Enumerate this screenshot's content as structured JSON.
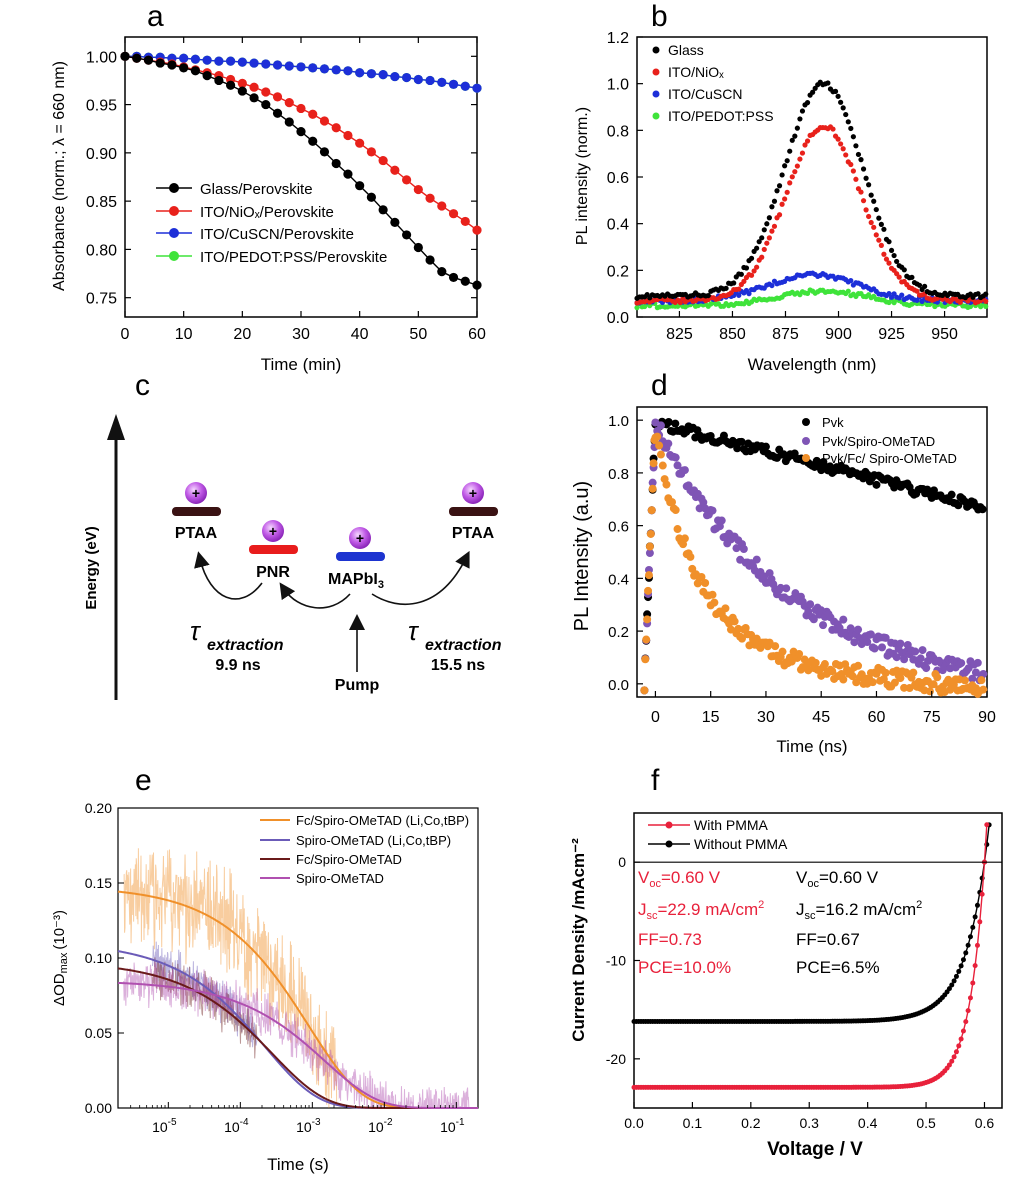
{
  "panels": {
    "a": {
      "letter": "a",
      "chart_data": {
        "type": "line",
        "xlabel": "Time (min)",
        "ylabel": "Absorbance (norm.; λ = 660 nm)",
        "xlim": [
          0,
          60
        ],
        "ylim": [
          0.73,
          1.02
        ],
        "xticks": [
          0,
          10,
          20,
          30,
          40,
          50,
          60
        ],
        "yticks": [
          "0.75",
          "0.80",
          "0.85",
          "0.90",
          "0.95",
          "1.00"
        ],
        "legend_position": "lower-left",
        "series": [
          {
            "name": "Glass/Perovskite",
            "color": "#000000",
            "x": [
              0,
              2,
              4,
              6,
              8,
              10,
              12,
              14,
              16,
              18,
              20,
              22,
              24,
              26,
              28,
              30,
              32,
              34,
              36,
              38,
              40,
              42,
              44,
              46,
              48,
              50,
              52,
              54,
              56,
              58,
              60
            ],
            "y": [
              1.0,
              0.998,
              0.996,
              0.993,
              0.991,
              0.988,
              0.985,
              0.98,
              0.975,
              0.97,
              0.964,
              0.957,
              0.95,
              0.941,
              0.932,
              0.922,
              0.912,
              0.901,
              0.889,
              0.878,
              0.866,
              0.854,
              0.841,
              0.828,
              0.815,
              0.802,
              0.789,
              0.777,
              0.771,
              0.767,
              0.763
            ]
          },
          {
            "name": "ITO/NiOₓ/Perovskite",
            "color": "#e8211b",
            "x": [
              0,
              2,
              4,
              6,
              8,
              10,
              12,
              14,
              16,
              18,
              20,
              22,
              24,
              26,
              28,
              30,
              32,
              34,
              36,
              38,
              40,
              42,
              44,
              46,
              48,
              50,
              52,
              54,
              56,
              58,
              60
            ],
            "y": [
              1.0,
              0.998,
              0.996,
              0.994,
              0.992,
              0.989,
              0.986,
              0.983,
              0.98,
              0.976,
              0.972,
              0.968,
              0.963,
              0.958,
              0.952,
              0.946,
              0.94,
              0.933,
              0.926,
              0.918,
              0.91,
              0.901,
              0.892,
              0.882,
              0.872,
              0.862,
              0.853,
              0.845,
              0.837,
              0.829,
              0.82
            ]
          },
          {
            "name": "ITO/CuSCN/Perovskite",
            "color": "#1d2fd8",
            "x": [
              0,
              2,
              4,
              6,
              8,
              10,
              12,
              14,
              16,
              18,
              20,
              22,
              24,
              26,
              28,
              30,
              32,
              34,
              36,
              38,
              40,
              42,
              44,
              46,
              48,
              50,
              52,
              54,
              56,
              58,
              60
            ],
            "y": [
              1.0,
              1.0,
              0.999,
              0.999,
              0.998,
              0.998,
              0.997,
              0.996,
              0.995,
              0.995,
              0.994,
              0.993,
              0.992,
              0.991,
              0.99,
              0.989,
              0.988,
              0.987,
              0.986,
              0.985,
              0.983,
              0.982,
              0.981,
              0.979,
              0.978,
              0.976,
              0.975,
              0.973,
              0.971,
              0.969,
              0.967
            ]
          },
          {
            "name": "ITO/PEDOT:PSS/Perovskite",
            "color": "#3fe33a",
            "x": [
              0,
              2,
              4,
              6,
              8,
              10,
              12,
              14,
              16,
              18,
              20,
              22,
              24,
              26,
              28,
              30,
              32,
              34,
              36,
              38,
              40,
              42,
              44,
              46,
              48,
              50,
              52,
              54,
              56,
              58,
              60
            ],
            "y": [
              1.0,
              1.0,
              0.999,
              0.999,
              0.998,
              0.998,
              0.997,
              0.996,
              0.995,
              0.995,
              0.994,
              0.993,
              0.992,
              0.991,
              0.99,
              0.989,
              0.988,
              0.987,
              0.986,
              0.985,
              0.983,
              0.982,
              0.981,
              0.979,
              0.978,
              0.976,
              0.975,
              0.973,
              0.971,
              0.969,
              0.967
            ]
          }
        ]
      }
    },
    "b": {
      "letter": "b",
      "chart_data": {
        "type": "scatter",
        "xlabel": "Wavelength (nm)",
        "ylabel": "PL intensity (norm.)",
        "xlim": [
          805,
          970
        ],
        "ylim": [
          0,
          1.2
        ],
        "xticks": [
          825,
          850,
          875,
          900,
          925,
          950
        ],
        "yticks": [
          "0.0",
          "0.2",
          "0.4",
          "0.6",
          "0.8",
          "1.0",
          "1.2"
        ],
        "legend_position": "top-left",
        "series": [
          {
            "name": "Glass",
            "color": "#000000",
            "peak": 1.0,
            "center": 893,
            "width": 26,
            "base": 0.09
          },
          {
            "name": "ITO/NiOₓ",
            "color": "#e8211b",
            "peak": 0.82,
            "center": 893,
            "width": 25,
            "base": 0.07
          },
          {
            "name": "ITO/CuSCN",
            "color": "#1d2fd8",
            "peak": 0.18,
            "center": 888,
            "width": 30,
            "base": 0.07
          },
          {
            "name": "ITO/PEDOT:PSS",
            "color": "#3fe33a",
            "peak": 0.11,
            "center": 893,
            "width": 30,
            "base": 0.05
          }
        ]
      }
    },
    "c": {
      "letter": "c",
      "energy_label": "Energy (eV)",
      "ptaa_left": "PTAA",
      "ptaa_right": "PTAA",
      "pnr": "PNR",
      "mapbi_main": "MAPbI",
      "mapbi_sub": "3",
      "tau_symbol": "τ",
      "extraction_word": "extraction",
      "tau_left_value": "9.9 ns",
      "tau_right_value": "15.5 ns",
      "pump": "Pump",
      "plus": "+",
      "colors": {
        "ptaa": "#3a1213",
        "pnr": "#e81c1c",
        "mapbi": "#1d34d0",
        "hole": "#b040e0"
      }
    },
    "d": {
      "letter": "d",
      "chart_data": {
        "type": "scatter",
        "xlabel": "Time (ns)",
        "ylabel": "PL Intensity (a.u)",
        "xlim": [
          -5,
          90
        ],
        "ylim": [
          -0.05,
          1.05
        ],
        "xticks": [
          0,
          15,
          30,
          45,
          60,
          75,
          90
        ],
        "yticks": [
          "0.0",
          "0.2",
          "0.4",
          "0.6",
          "0.8",
          "1.0"
        ],
        "legend_position": "top-right",
        "series": [
          {
            "name": "Pvk",
            "color": "#000000",
            "tau": 270,
            "rise_start": -2
          },
          {
            "name": "Pvk/Spiro-OMeTAD",
            "color": "#7f55b5",
            "tau": 32,
            "rise_start": -2
          },
          {
            "name": "Pvk/Fc/ Spiro-OMeTAD",
            "color": "#f0902a",
            "tau": 12,
            "rise_start": -2
          }
        ]
      }
    },
    "e": {
      "letter": "e",
      "chart_data": {
        "type": "line",
        "x_scale": "log",
        "xlabel": "Time (s)",
        "ylabel_main": "ΔOD",
        "ylabel_sub": "max",
        "ylabel_unit": "(10⁻³)",
        "xlim": [
          2e-06,
          0.2
        ],
        "ylim": [
          0,
          0.2
        ],
        "xticks": [
          {
            "base": "10",
            "exp": "-5",
            "v": 1e-05
          },
          {
            "base": "10",
            "exp": "-4",
            "v": 0.0001
          },
          {
            "base": "10",
            "exp": "-3",
            "v": 0.001
          },
          {
            "base": "10",
            "exp": "-2",
            "v": 0.01
          },
          {
            "base": "10",
            "exp": "-1",
            "v": 0.1
          }
        ],
        "yticks": [
          "0.00",
          "0.05",
          "0.10",
          "0.15",
          "0.20"
        ],
        "legend_position": "top-right",
        "series": [
          {
            "name": "Fc/Spiro-OMeTAD (Li,Co,tBP)",
            "color": "#f0902a",
            "amplitude": 0.148,
            "tau": 0.0009
          },
          {
            "name": "Spiro-OMeTAD (Li,Co,tBP)",
            "color": "#6b5bb8",
            "amplitude": 0.111,
            "tau": 0.00022
          },
          {
            "name": "Fc/Spiro-OMeTAD",
            "color": "#6a1a1a",
            "amplitude": 0.098,
            "tau": 0.00028
          },
          {
            "name": "Spiro-OMeTAD",
            "color": "#b050b0",
            "amplitude": 0.085,
            "tau": 0.0015
          }
        ]
      }
    },
    "f": {
      "letter": "f",
      "chart_data": {
        "type": "line",
        "xlabel": "Voltage / V",
        "ylabel": "Current Density /mAcm⁻²",
        "xlim": [
          0,
          0.63
        ],
        "ylim": [
          -25,
          5
        ],
        "xticks": [
          "0.0",
          "0.1",
          "0.2",
          "0.3",
          "0.4",
          "0.5",
          "0.6"
        ],
        "yticks": [
          "0",
          "-10",
          "-20"
        ],
        "legend_position": "top-left",
        "series": [
          {
            "name": "With PMMA",
            "color": "#e8213b",
            "jsc": 22.9,
            "voc": 0.6,
            "n": 0.026
          },
          {
            "name": "Without PMMA",
            "color": "#000000",
            "jsc": 16.2,
            "voc": 0.6,
            "n": 0.038
          }
        ],
        "annot_with": {
          "voc_main": "V",
          "voc_sub": "oc",
          "voc_val": "=0.60 V",
          "jsc_main": "J",
          "jsc_sub": "sc",
          "jsc_val": "=22.9 mA/cm",
          "jsc_sup": "2",
          "ff": "FF=0.73",
          "pce": "PCE=10.0%"
        },
        "annot_without": {
          "voc_main": "V",
          "voc_sub": "oc",
          "voc_val": "=0.60 V",
          "jsc_main": "J",
          "jsc_sub": "sc",
          "jsc_val": "=16.2 mA/cm",
          "jsc_sup": "2",
          "ff": "FF=0.67",
          "pce": "PCE=6.5%"
        }
      }
    }
  }
}
